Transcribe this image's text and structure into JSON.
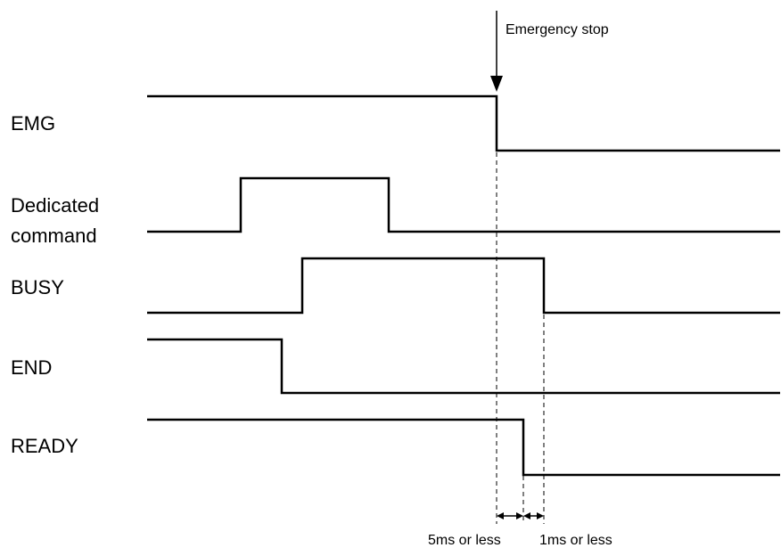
{
  "diagram": {
    "signals": [
      {
        "label": "EMG"
      },
      {
        "label_line1": "Dedicated",
        "label_line2": "command"
      },
      {
        "label": "BUSY"
      },
      {
        "label": "END"
      },
      {
        "label": "READY"
      }
    ],
    "event_label": "Emergency stop",
    "timing_labels": [
      "5ms or less",
      "1ms or less"
    ]
  }
}
